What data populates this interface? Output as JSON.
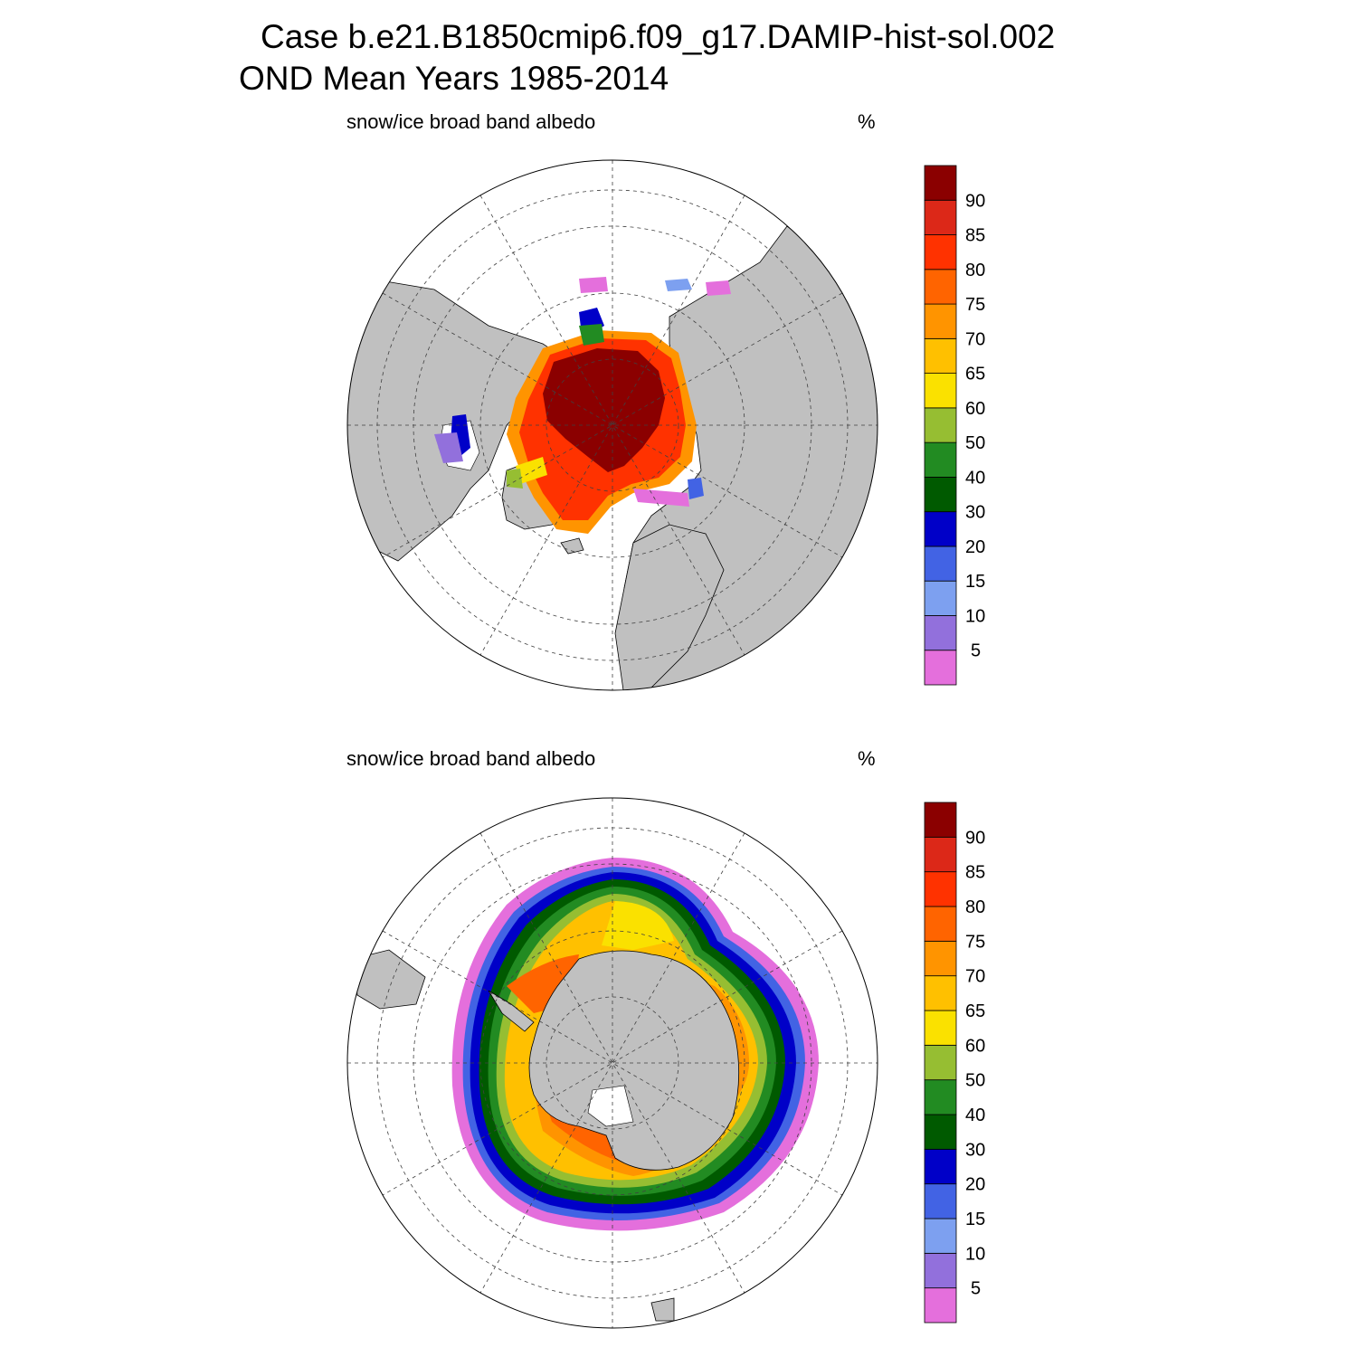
{
  "header": {
    "line1": "Case b.e21.B1850cmip6.f09_g17.DAMIP-hist-sol.002",
    "line2": "OND Mean   Years 1985-2014"
  },
  "panels": [
    {
      "id": "north",
      "title": "snow/ice broad band albedo",
      "units": "%"
    },
    {
      "id": "south",
      "title": "snow/ice broad band albedo",
      "units": "%"
    }
  ],
  "colors": {
    "land": "#c0c0c0",
    "no_data": "#ffffff",
    "levels": [
      "#e46fdc",
      "#9270dc",
      "#7da0f0",
      "#4263e4",
      "#0000c8",
      "#005a00",
      "#228b22",
      "#96be32",
      "#fae100",
      "#ffc000",
      "#ff9400",
      "#ff6400",
      "#ff3200",
      "#dc2818",
      "#8b0000"
    ]
  },
  "chart_data": {
    "type": "heatmap",
    "variable": "snow/ice broad band albedo",
    "units": "%",
    "colorbar": {
      "tick_labels": [
        "5",
        "10",
        "15",
        "20",
        "30",
        "40",
        "50",
        "60",
        "65",
        "70",
        "75",
        "80",
        "85",
        "90"
      ],
      "boundaries": [
        5,
        10,
        15,
        20,
        30,
        40,
        50,
        60,
        65,
        70,
        75,
        80,
        85,
        90
      ]
    },
    "maps": [
      {
        "hemisphere": "north",
        "projection": "polar stereographic"
      },
      {
        "hemisphere": "south",
        "projection": "polar stereographic"
      }
    ]
  }
}
